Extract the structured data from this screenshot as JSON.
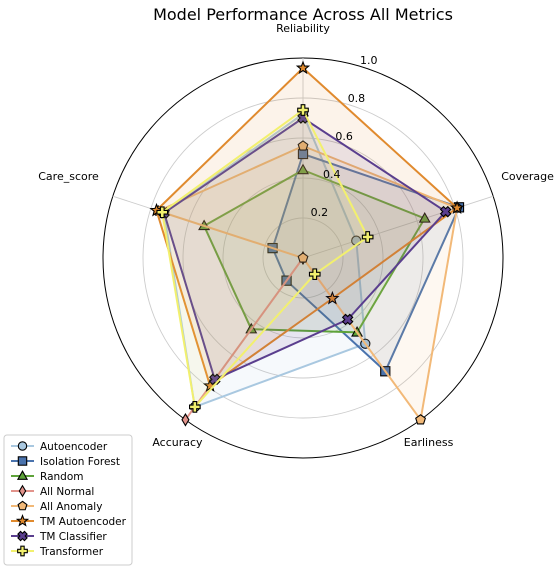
{
  "chart_data": {
    "type": "radar",
    "title": "Model Performance Across All Metrics",
    "axes": [
      "Reliability",
      "Coverage",
      "Earliness",
      "Accuracy",
      "Care_score"
    ],
    "rlim": [
      0,
      1.0
    ],
    "r_ticks": [
      {
        "value": 0.2,
        "label": "0.2"
      },
      {
        "value": 0.4,
        "label": "0.4"
      },
      {
        "value": 0.6,
        "label": "0.6"
      },
      {
        "value": 0.8,
        "label": "0.8"
      },
      {
        "value": 1.0,
        "label": "1.0"
      }
    ],
    "grid": true,
    "legend_position": "bottom-left",
    "series": [
      {
        "name": "Autoencoder",
        "color": "#a9c8e0",
        "marker": "circle",
        "values": [
          0.72,
          0.28,
          0.53,
          0.92,
          0.73
        ]
      },
      {
        "name": "Isolation Forest",
        "color": "#4a73ad",
        "marker": "square",
        "values": [
          0.52,
          0.82,
          0.7,
          0.14,
          0.16
        ]
      },
      {
        "name": "Random",
        "color": "#5ea33a",
        "marker": "triangle",
        "values": [
          0.44,
          0.64,
          0.46,
          0.44,
          0.52
        ]
      },
      {
        "name": "All Normal",
        "color": "#e2938b",
        "marker": "diamond",
        "values": [
          0.0,
          0.0,
          0.0,
          1.0,
          0.0
        ]
      },
      {
        "name": "All Anomaly",
        "color": "#f2b978",
        "marker": "pentagon",
        "values": [
          0.56,
          0.81,
          1.0,
          0.0,
          0.76
        ]
      },
      {
        "name": "TM Autoencoder",
        "color": "#e08a2e",
        "marker": "star",
        "values": [
          0.95,
          0.81,
          0.25,
          0.79,
          0.77
        ]
      },
      {
        "name": "TM Classifier",
        "color": "#5a3e8e",
        "marker": "cross",
        "values": [
          0.7,
          0.75,
          0.38,
          0.75,
          0.73
        ]
      },
      {
        "name": "Transformer",
        "color": "#f2f06e",
        "marker": "plus",
        "values": [
          0.74,
          0.34,
          0.1,
          0.92,
          0.74
        ]
      }
    ]
  }
}
